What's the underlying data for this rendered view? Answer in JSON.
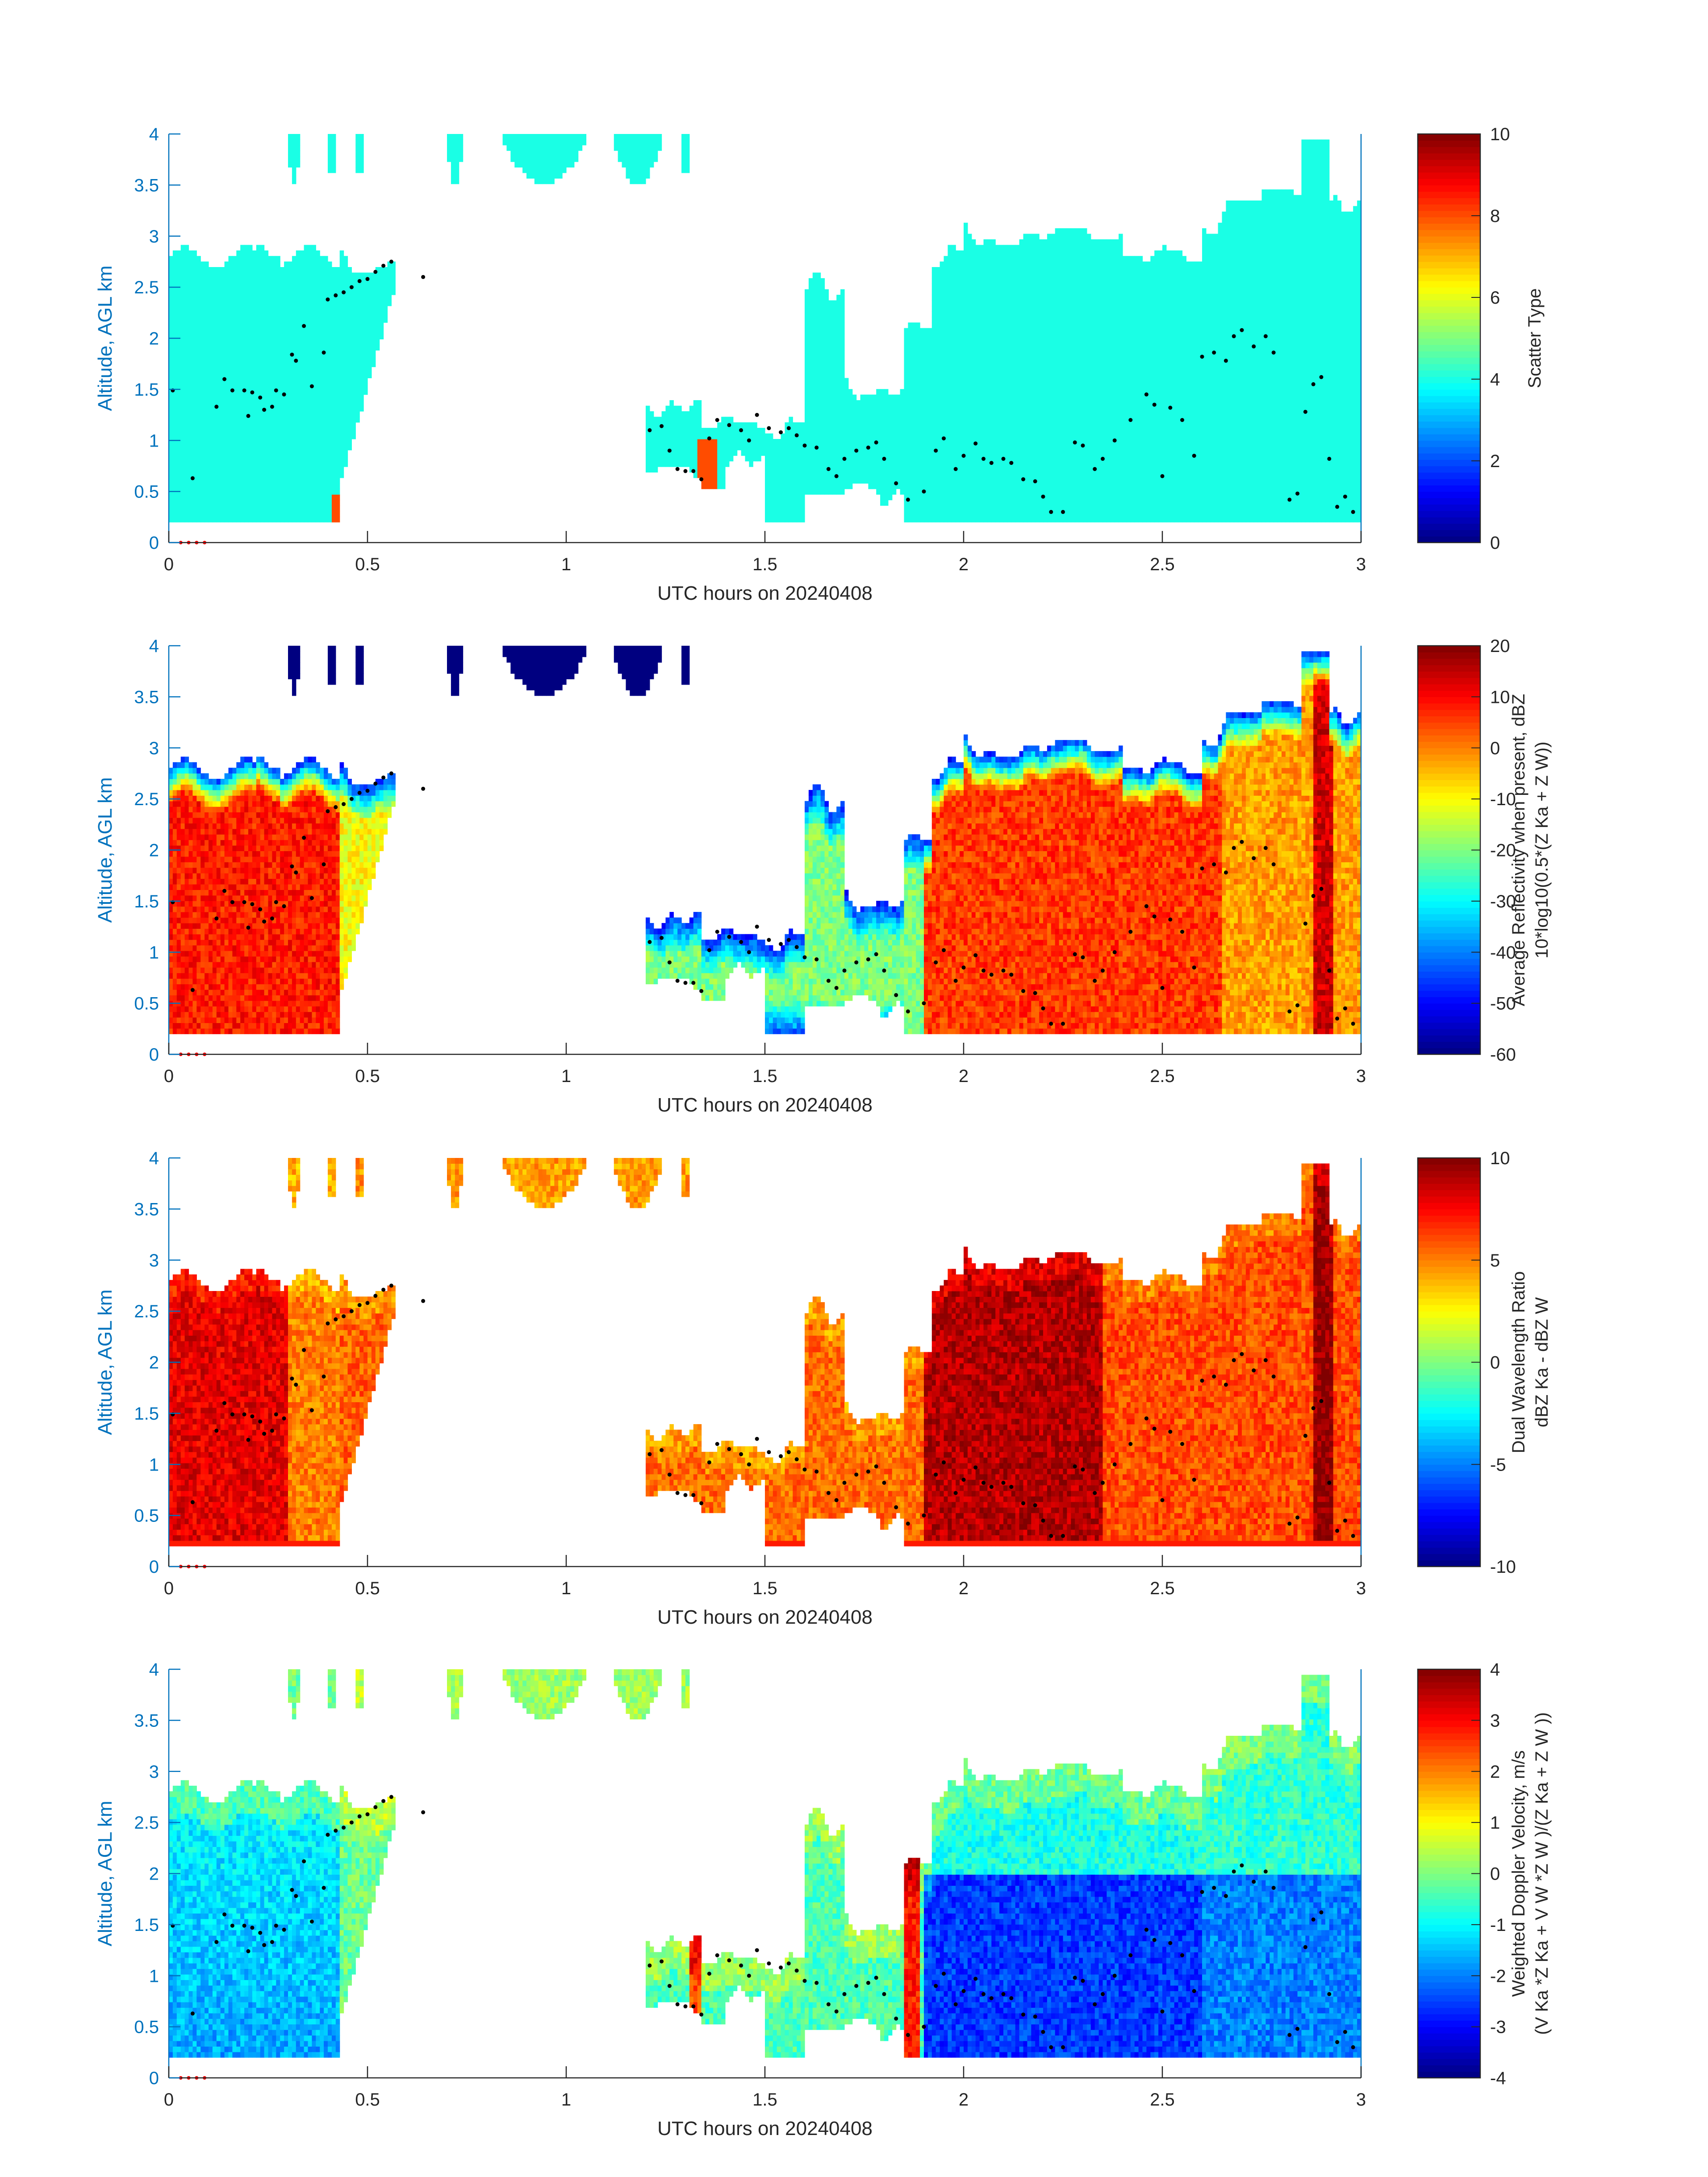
{
  "figure": {
    "x_ticks": [
      "0",
      "0.5",
      "1",
      "1.5",
      "2",
      "2.5",
      "3"
    ],
    "y_ticks": [
      "0",
      "0.5",
      "1",
      "1.5",
      "2",
      "2.5",
      "3",
      "3.5",
      "4"
    ],
    "ylabel": "Altitude, AGL km",
    "xlabel": "UTC hours on 20240408",
    "colors": {
      "axis_blue": "#0072bd",
      "melting_dots": "#000000",
      "red_markers": "#ff0000"
    }
  },
  "chart_data": [
    {
      "id": "scatter-type",
      "type": "heatmap",
      "title": "",
      "xlabel": "UTC hours on 20240408",
      "ylabel": "Altitude, AGL km",
      "xlim": [
        0,
        3
      ],
      "ylim": [
        0,
        4
      ],
      "colorbar": {
        "label_lines": [
          "Scatter Type"
        ],
        "ticks": [
          "0",
          "2",
          "4",
          "6",
          "8",
          "10"
        ],
        "range": [
          0,
          10
        ],
        "colormap": "jet"
      }
    },
    {
      "id": "reflectivity",
      "type": "heatmap",
      "title": "",
      "xlabel": "UTC hours on 20240408",
      "ylabel": "Altitude, AGL km",
      "xlim": [
        0,
        3
      ],
      "ylim": [
        0,
        4
      ],
      "colorbar": {
        "label_lines": [
          "Average Reflectivity when present, dBZ",
          "10*log10(0.5*(Z Ka + Z W))"
        ],
        "ticks": [
          "-60",
          "-50",
          "-40",
          "-30",
          "-20",
          "-10",
          "0",
          "10",
          "20"
        ],
        "range": [
          -60,
          20
        ],
        "colormap": "jet"
      }
    },
    {
      "id": "dual-wavelength-ratio",
      "type": "heatmap",
      "title": "",
      "xlabel": "UTC hours on 20240408",
      "ylabel": "Altitude, AGL km",
      "xlim": [
        0,
        3
      ],
      "ylim": [
        0,
        4
      ],
      "colorbar": {
        "label_lines": [
          "Dual Wavelength Ratio",
          "dBZ Ka - dBZ W"
        ],
        "ticks": [
          "-10",
          "-5",
          "0",
          "5",
          "10"
        ],
        "range": [
          -10,
          10
        ],
        "colormap": "jet"
      }
    },
    {
      "id": "doppler-velocity",
      "type": "heatmap",
      "title": "",
      "xlabel": "UTC hours on 20240408",
      "ylabel": "Altitude, AGL km",
      "xlim": [
        0,
        3
      ],
      "ylim": [
        0,
        4
      ],
      "colorbar": {
        "label_lines": [
          "Weighted Doppler Velocity, m/s",
          "(V Ka *Z Ka + V W *Z W )/(Z Ka + Z W ))"
        ],
        "ticks": [
          "-4",
          "-3",
          "-2",
          "-1",
          "0",
          "1",
          "2",
          "3",
          "4"
        ],
        "range": [
          -4,
          4
        ],
        "colormap": "jet"
      }
    }
  ],
  "melting_layer_points": [
    [
      0.01,
      1.49
    ],
    [
      0.06,
      0.63
    ],
    [
      0.12,
      1.33
    ],
    [
      0.14,
      1.6
    ],
    [
      0.16,
      1.49
    ],
    [
      0.19,
      1.49
    ],
    [
      0.2,
      1.24
    ],
    [
      0.21,
      1.47
    ],
    [
      0.23,
      1.42
    ],
    [
      0.24,
      1.3
    ],
    [
      0.26,
      1.33
    ],
    [
      0.27,
      1.49
    ],
    [
      0.29,
      1.45
    ],
    [
      0.31,
      1.84
    ],
    [
      0.32,
      1.78
    ],
    [
      0.34,
      2.12
    ],
    [
      0.36,
      1.53
    ],
    [
      0.39,
      1.86
    ],
    [
      0.4,
      2.38
    ],
    [
      0.42,
      2.42
    ],
    [
      0.44,
      2.45
    ],
    [
      0.46,
      2.5
    ],
    [
      0.48,
      2.56
    ],
    [
      0.5,
      2.58
    ],
    [
      0.52,
      2.65
    ],
    [
      0.54,
      2.71
    ],
    [
      0.56,
      2.75
    ],
    [
      0.64,
      2.6
    ],
    [
      1.21,
      1.1
    ],
    [
      1.24,
      1.14
    ],
    [
      1.26,
      0.9
    ],
    [
      1.28,
      0.72
    ],
    [
      1.3,
      0.7
    ],
    [
      1.32,
      0.7
    ],
    [
      1.34,
      0.62
    ],
    [
      1.36,
      1.02
    ],
    [
      1.38,
      1.2
    ],
    [
      1.41,
      1.15
    ],
    [
      1.44,
      1.1
    ],
    [
      1.46,
      1.0
    ],
    [
      1.48,
      1.25
    ],
    [
      1.51,
      1.12
    ],
    [
      1.54,
      1.08
    ],
    [
      1.56,
      1.12
    ],
    [
      1.58,
      1.05
    ],
    [
      1.6,
      0.95
    ],
    [
      1.63,
      0.93
    ],
    [
      1.66,
      0.72
    ],
    [
      1.68,
      0.65
    ],
    [
      1.7,
      0.82
    ],
    [
      1.73,
      0.9
    ],
    [
      1.76,
      0.93
    ],
    [
      1.78,
      0.98
    ],
    [
      1.8,
      0.82
    ],
    [
      1.83,
      0.58
    ],
    [
      1.86,
      0.42
    ],
    [
      1.9,
      0.5
    ],
    [
      1.93,
      0.9
    ],
    [
      1.95,
      1.02
    ],
    [
      1.98,
      0.72
    ],
    [
      2.0,
      0.85
    ],
    [
      2.03,
      0.97
    ],
    [
      2.05,
      0.82
    ],
    [
      2.07,
      0.78
    ],
    [
      2.1,
      0.82
    ],
    [
      2.12,
      0.78
    ],
    [
      2.15,
      0.62
    ],
    [
      2.18,
      0.6
    ],
    [
      2.2,
      0.45
    ],
    [
      2.22,
      0.3
    ],
    [
      2.25,
      0.3
    ],
    [
      2.28,
      0.98
    ],
    [
      2.3,
      0.95
    ],
    [
      2.33,
      0.72
    ],
    [
      2.35,
      0.82
    ],
    [
      2.38,
      1.0
    ],
    [
      2.42,
      1.2
    ],
    [
      2.46,
      1.45
    ],
    [
      2.48,
      1.35
    ],
    [
      2.5,
      0.65
    ],
    [
      2.52,
      1.32
    ],
    [
      2.55,
      1.2
    ],
    [
      2.58,
      0.85
    ],
    [
      2.6,
      1.82
    ],
    [
      2.63,
      1.86
    ],
    [
      2.66,
      1.78
    ],
    [
      2.68,
      2.02
    ],
    [
      2.7,
      2.08
    ],
    [
      2.73,
      1.92
    ],
    [
      2.76,
      2.02
    ],
    [
      2.78,
      1.86
    ],
    [
      2.82,
      0.42
    ],
    [
      2.84,
      0.48
    ],
    [
      2.86,
      1.28
    ],
    [
      2.88,
      1.55
    ],
    [
      2.9,
      1.62
    ],
    [
      2.92,
      0.82
    ],
    [
      2.94,
      0.35
    ],
    [
      2.96,
      0.45
    ],
    [
      2.98,
      0.3
    ]
  ],
  "red_marker_points": [
    [
      0.03,
      0
    ],
    [
      0.05,
      0
    ],
    [
      0.07,
      0
    ],
    [
      0.09,
      0
    ]
  ]
}
